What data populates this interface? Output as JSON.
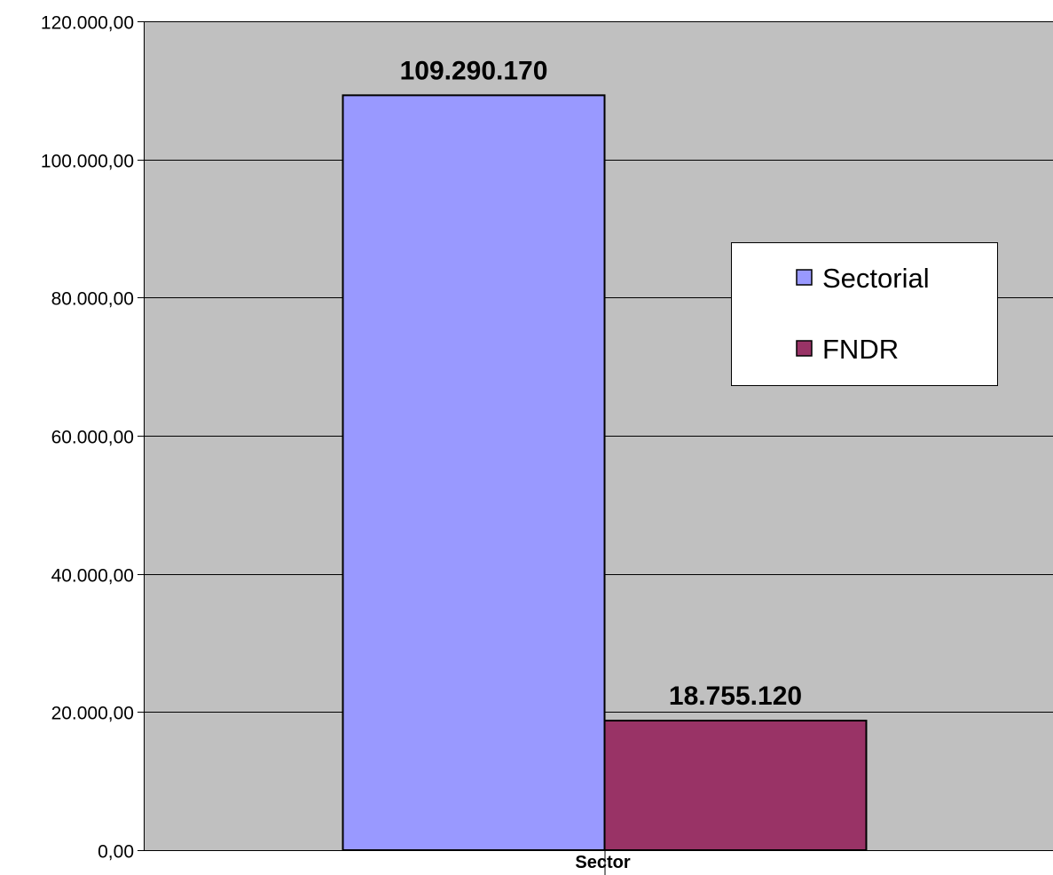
{
  "chart_data": {
    "type": "bar",
    "categories": [
      "Sector"
    ],
    "series": [
      {
        "name": "Sectorial",
        "values": [
          109290.17
        ],
        "value_label": "109.290.170",
        "color": "#9999ff"
      },
      {
        "name": "FNDR",
        "values": [
          18755.12
        ],
        "value_label": "18.755.120",
        "color": "#993366"
      }
    ],
    "ylim": [
      0,
      120000
    ],
    "yticks": [
      0,
      20000,
      40000,
      60000,
      80000,
      100000,
      120000
    ],
    "ytick_labels": [
      "0,00",
      "20.000,00",
      "40.000,00",
      "60.000,00",
      "80.000,00",
      "100.000,00",
      "120.000,00"
    ],
    "grid": true,
    "legend_position": "right",
    "plot_background": "#c0c0c0"
  }
}
